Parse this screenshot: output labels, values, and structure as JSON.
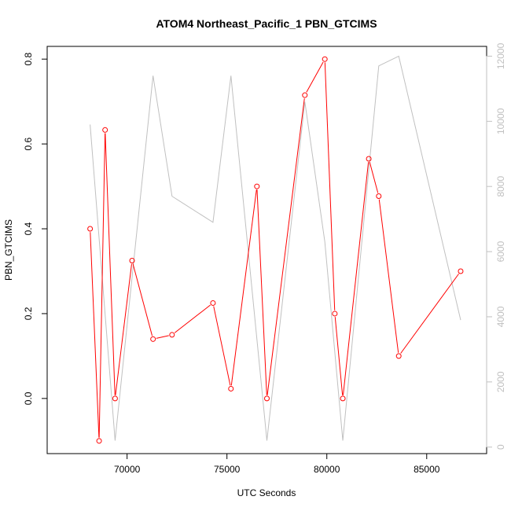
{
  "chart_data": {
    "type": "line",
    "title": "ATOM4 Northeast_Pacific_1 PBN_GTCIMS",
    "xlabel": "UTC Seconds",
    "ylabel": "PBN_GTCIMS",
    "xlim": [
      66000,
      88000
    ],
    "ylim": [
      -0.13,
      0.83
    ],
    "y2lim": [
      -200,
      12300
    ],
    "x_ticks": [
      70000,
      75000,
      80000,
      85000
    ],
    "y_ticks": [
      0.0,
      0.2,
      0.4,
      0.6,
      0.8
    ],
    "y2_ticks": [
      0,
      2000,
      4000,
      6000,
      8000,
      10000,
      12000
    ],
    "grid": false,
    "colors": {
      "primary": "#ff0000",
      "secondary": "#c0c0c0",
      "axis": "#000000"
    },
    "series": [
      {
        "axis": "left",
        "markers": true,
        "x": [
          68150,
          68600,
          68900,
          69400,
          70250,
          71300,
          72250,
          74300,
          75200,
          76500,
          77000,
          78900,
          79900,
          80400,
          80800,
          82100,
          82600,
          83600,
          86700
        ],
        "values": [
          0.4,
          -0.1,
          0.633,
          0.0,
          0.325,
          0.14,
          0.15,
          0.225,
          0.023,
          0.5,
          0.0,
          0.715,
          0.8,
          0.2,
          0.0,
          0.565,
          0.477,
          0.1,
          0.3
        ]
      },
      {
        "axis": "right",
        "markers": false,
        "x": [
          68150,
          69400,
          71300,
          72250,
          74300,
          75200,
          77000,
          78900,
          79900,
          80800,
          82600,
          83600,
          86700
        ],
        "values": [
          9900,
          200,
          11400,
          7700,
          6900,
          11400,
          200,
          10600,
          6300,
          200,
          11700,
          12000,
          3900
        ]
      }
    ]
  }
}
